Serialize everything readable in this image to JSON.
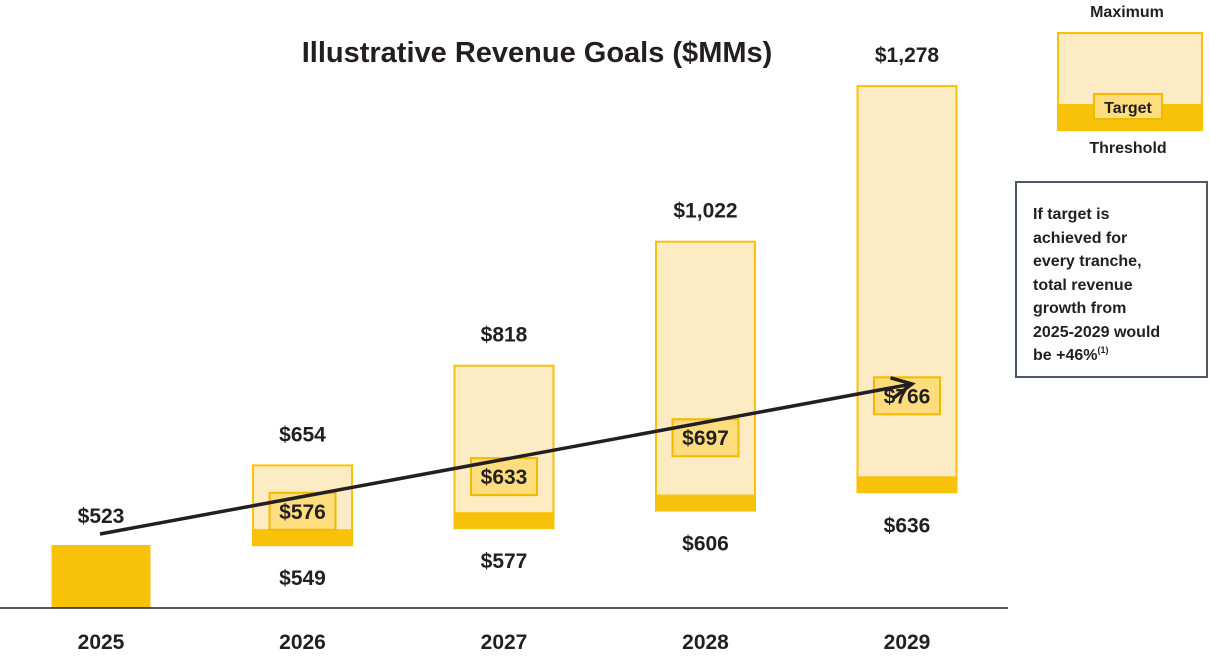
{
  "colors": {
    "current": "#f9c20a",
    "threshold": "#f9c20a",
    "range_fill": "#fdebc4",
    "range_border": "#f9c20a",
    "target_fill": "#fddd7e",
    "target_border": "#f5b800",
    "axis": "#231f20",
    "arrow": "#231f20",
    "callout_border": "#4d5866"
  },
  "legend": {
    "maximum_label": "Maximum",
    "target_label": "Target",
    "threshold_label": "Threshold"
  },
  "callout": {
    "lines": [
      "If target is",
      "achieved for",
      "every tranche,",
      "total revenue",
      "growth from",
      "2025-2029 would"
    ],
    "last_line": "be +46%",
    "footnote": "(1)"
  },
  "chart_data": {
    "type": "bar",
    "title": "Illustrative Revenue Goals ($MMs)",
    "xlabel": "",
    "ylabel": "",
    "categories": [
      "2025",
      "2026",
      "2027",
      "2028",
      "2029"
    ],
    "series": [
      {
        "name": "Threshold",
        "values": [
          523,
          549,
          577,
          606,
          636
        ],
        "labels": [
          "$523",
          "$549",
          "$577",
          "$606",
          "$636"
        ]
      },
      {
        "name": "Target",
        "values": [
          null,
          576,
          633,
          697,
          766
        ],
        "labels": [
          "",
          "$576",
          "$633",
          "$697",
          "$766"
        ]
      },
      {
        "name": "Maximum",
        "values": [
          null,
          654,
          818,
          1022,
          1278
        ],
        "labels": [
          "",
          "$654",
          "$818",
          "$1,022",
          "$1,278"
        ]
      }
    ],
    "trend_arrow": {
      "from": "2025",
      "to": "2029"
    }
  }
}
